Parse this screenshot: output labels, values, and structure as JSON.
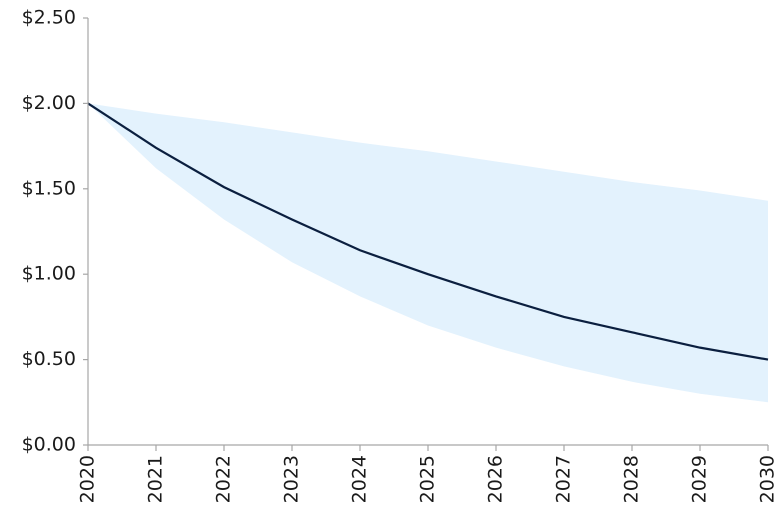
{
  "chart_data": {
    "type": "line",
    "x": [
      2020,
      2021,
      2022,
      2023,
      2024,
      2025,
      2026,
      2027,
      2028,
      2029,
      2030
    ],
    "line": {
      "color": "#0b1f3f",
      "values": [
        2.0,
        1.74,
        1.51,
        1.32,
        1.14,
        1.0,
        0.87,
        0.75,
        0.66,
        0.57,
        0.5
      ]
    },
    "band": {
      "color": "#e3f2fd",
      "upper": [
        2.0,
        1.94,
        1.89,
        1.83,
        1.77,
        1.72,
        1.66,
        1.6,
        1.54,
        1.49,
        1.43
      ],
      "lower": [
        2.0,
        1.62,
        1.32,
        1.07,
        0.87,
        0.7,
        0.57,
        0.46,
        0.37,
        0.3,
        0.25
      ]
    },
    "xlim": [
      2020,
      2030
    ],
    "xticks": [
      2020,
      2021,
      2022,
      2023,
      2024,
      2025,
      2026,
      2027,
      2028,
      2029,
      2030
    ],
    "ylim": [
      0,
      2.5
    ],
    "yticks": [
      {
        "value": 0,
        "label": "$0.00"
      },
      {
        "value": 0.5,
        "label": "$0.50"
      },
      {
        "value": 1,
        "label": "$1.00"
      },
      {
        "value": 1.5,
        "label": "$1.50"
      },
      {
        "value": 2,
        "label": "$2.00"
      },
      {
        "value": 2.5,
        "label": "$2.50"
      }
    ]
  }
}
